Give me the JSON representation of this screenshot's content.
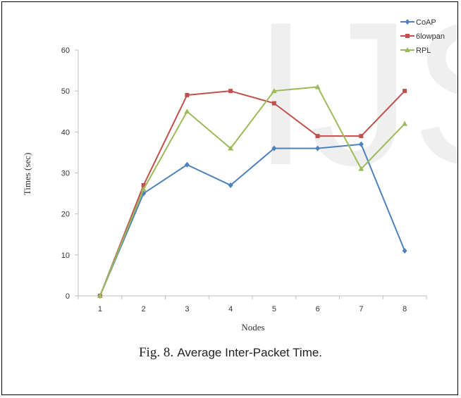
{
  "colors": {
    "axis": "#bfbfbf",
    "watermark": "#efefef",
    "text": "#333333"
  },
  "watermark": {
    "text": "IJS"
  },
  "caption": {
    "fig_label": "Fig. 8.",
    "title": "Average Inter-Packet Time."
  },
  "chart_data": {
    "type": "line",
    "title": "",
    "xlabel": "Nodes",
    "ylabel": "Times (sec)",
    "categories": [
      "1",
      "2",
      "3",
      "4",
      "5",
      "6",
      "7",
      "8"
    ],
    "ylim": [
      0,
      60
    ],
    "yticks": [
      0,
      10,
      20,
      30,
      40,
      50,
      60
    ],
    "grid": false,
    "legend": "top-right",
    "series": [
      {
        "name": "CoAP",
        "color": "#4f81bd",
        "marker": "diamond",
        "values": [
          0,
          25,
          32,
          27,
          36,
          36,
          37,
          11
        ]
      },
      {
        "name": "6lowpan",
        "color": "#c0504d",
        "marker": "square",
        "values": [
          0,
          27,
          49,
          50,
          47,
          39,
          39,
          50
        ]
      },
      {
        "name": "RPL",
        "color": "#9bbb59",
        "marker": "triangle",
        "values": [
          0,
          26,
          45,
          36,
          50,
          51,
          31,
          42
        ]
      }
    ]
  }
}
